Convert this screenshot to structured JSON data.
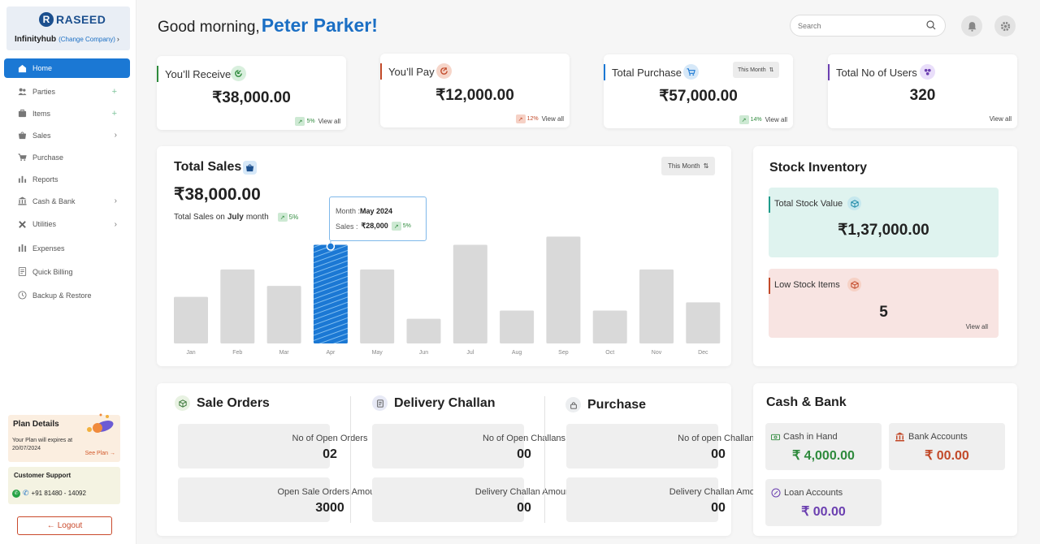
{
  "brand": {
    "logo_letter": "R",
    "logo_text": "RASEED",
    "company": "Infinityhub",
    "change_company": "(Change Company)"
  },
  "nav": {
    "items": [
      {
        "label": "Home",
        "icon": "home-icon"
      },
      {
        "label": "Parties",
        "icon": "parties-icon"
      },
      {
        "label": "Items",
        "icon": "items-icon"
      },
      {
        "label": "Sales",
        "icon": "sales-icon"
      },
      {
        "label": "Purchase",
        "icon": "purchase-icon"
      },
      {
        "label": "Reports",
        "icon": "reports-icon"
      },
      {
        "label": "Cash & Bank",
        "icon": "cash-bank-icon"
      },
      {
        "label": "Utilities",
        "icon": "utilities-icon"
      },
      {
        "label": "Expenses",
        "icon": "expenses-icon"
      },
      {
        "label": "Quick Billing",
        "icon": "quick-billing-icon"
      },
      {
        "label": "Backup & Restore",
        "icon": "backup-icon"
      }
    ]
  },
  "plan": {
    "title": "Plan Details",
    "subtitle": "Your Plan will expires at 20/07/2024",
    "link": "See Plan →"
  },
  "support": {
    "title": "Customer Support",
    "phone": "+91 81480 - 14092"
  },
  "logout": {
    "label": "Logout",
    "arrow": "←"
  },
  "header": {
    "greeting": "Good morning,",
    "name": "Peter Parker!",
    "search_placeholder": "Search"
  },
  "metrics": [
    {
      "title": "You’ll Receive",
      "value": "₹38,000.00",
      "change": "5%",
      "trend": "up",
      "link": "View all",
      "accent": "#2e8a3c"
    },
    {
      "title": "You’ll Pay",
      "value": "₹12,000.00",
      "change": "12%",
      "trend": "down",
      "link": "View all",
      "accent": "#c24a2a"
    },
    {
      "title": "Total Purchase",
      "value": "₹57,000.00",
      "change": "14%",
      "trend": "up",
      "link": "View all",
      "filter": "This Month",
      "accent": "#1b78d4"
    },
    {
      "title": "Total No of Users",
      "value": "320",
      "link": "View all",
      "accent": "#6b3fb0"
    }
  ],
  "total_sales": {
    "title": "Total Sales",
    "filter": "This Month",
    "value": "₹38,000.00",
    "sub_prefix": "Total Sales on",
    "sub_month": "July",
    "sub_suffix": "month",
    "change": "5%",
    "tooltip": {
      "month_label": "Month :",
      "month": "May 2024",
      "sales_label": "Sales :",
      "sales": "₹28,000",
      "change": "5%"
    }
  },
  "chart_data": {
    "type": "bar",
    "categories": [
      "Jan",
      "Feb",
      "Mar",
      "Apr",
      "May",
      "Jun",
      "Jul",
      "Aug",
      "Sep",
      "Oct",
      "Nov",
      "Dec"
    ],
    "values": [
      17,
      27,
      21,
      36,
      27,
      9,
      36,
      12,
      39,
      12,
      27,
      15
    ],
    "highlight_index": 3,
    "ylim": [
      0,
      40
    ],
    "grid": false,
    "colors": {
      "bar": "#d9d9d9",
      "highlight": "#1b78d4"
    }
  },
  "stock": {
    "title": "Stock Inventory",
    "total_label": "Total Stock Value",
    "total_value": "₹1,37,000.00",
    "low_label": "Low Stock Items",
    "low_value": "5",
    "link": "View all"
  },
  "sale_orders": {
    "title": "Sale Orders",
    "open_label": "No of Open Orders",
    "open_value": "02",
    "amount_label": "Open Sale Orders Amount",
    "amount_value": "3000"
  },
  "delivery": {
    "title": "Delivery Challan",
    "open_label": "No of Open Challans",
    "open_value": "00",
    "amount_label": "Delivery Challan Amount",
    "amount_value": "00"
  },
  "purchase": {
    "title": "Purchase",
    "open_label": "No of open Challans",
    "open_value": "00",
    "amount_label": "Delivery Challan Amount",
    "amount_value": "00"
  },
  "cash_bank": {
    "title": "Cash & Bank",
    "cash_label": "Cash in Hand",
    "cash_value": "₹ 4,000.00",
    "bank_label": "Bank Accounts",
    "bank_value": "₹ 00.00",
    "loan_label": "Loan Accounts",
    "loan_value": "₹ 00.00"
  },
  "colors": {
    "primary": "#1b78d4",
    "green": "#2e8a3c",
    "orange": "#c24a2a",
    "purple": "#6b3fb0"
  }
}
